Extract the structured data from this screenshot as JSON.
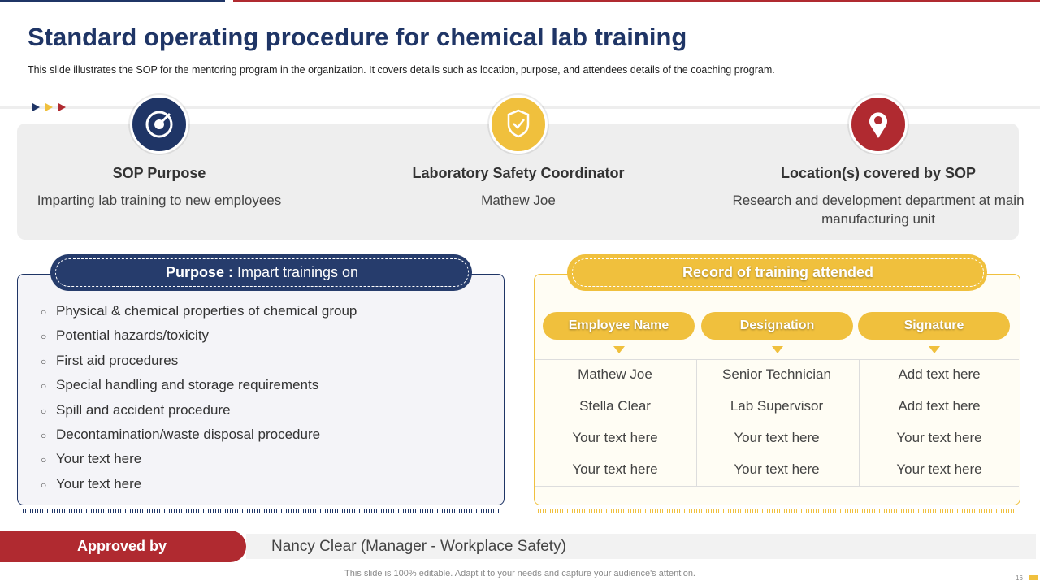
{
  "header": {
    "title": "Standard operating procedure for chemical lab training",
    "subtitle": "This slide illustrates the SOP for the mentoring program in the organization. It covers details such as location, purpose, and attendees details of the coaching program."
  },
  "cards": [
    {
      "title": "SOP Purpose",
      "text": "Imparting lab training to new employees"
    },
    {
      "title": "Laboratory  Safety Coordinator",
      "text": "Mathew Joe"
    },
    {
      "title": "Location(s)  covered by SOP",
      "text": "Research and development department at main manufacturing unit"
    }
  ],
  "purpose": {
    "label": "Purpose :",
    "title": "Impart trainings on",
    "items": [
      "Physical & chemical properties of chemical group",
      "Potential hazards/toxicity",
      "First aid procedures",
      "Special handling and storage requirements",
      "Spill and accident procedure",
      "Decontamination/waste disposal procedure",
      "Your text here",
      "Your text here"
    ]
  },
  "record": {
    "title": "Record of training attended",
    "columns": [
      "Employee Name",
      "Designation",
      "Signature"
    ],
    "rows": [
      [
        "Mathew Joe",
        "Senior Technician",
        "Add text here"
      ],
      [
        "Stella Clear",
        "Lab Supervisor",
        "Add text here"
      ],
      [
        "Your text here",
        "Your text here",
        "Your text here"
      ],
      [
        "Your text here",
        "Your text here",
        "Your text here"
      ]
    ]
  },
  "approval": {
    "label": "Approved by",
    "text": "Nancy Clear (Manager - Workplace Safety)"
  },
  "footer": {
    "note": "This slide is 100% editable. Adapt it to your needs and capture your audience's attention.",
    "page": 16
  }
}
